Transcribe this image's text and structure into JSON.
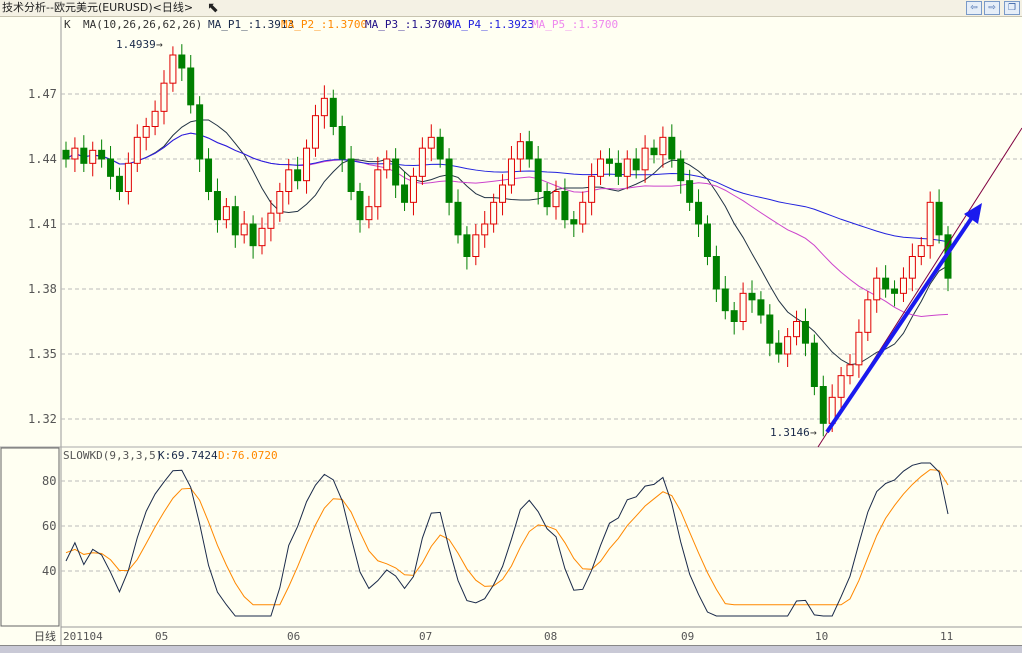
{
  "window": {
    "title": "技术分析--欧元美元(EURUSD)<日线>"
  },
  "legend": {
    "k": "K",
    "ma": "MA(10,26,26,62,26)",
    "p1": "MA_P1_:1.3913",
    "p2": "MA_P2_:1.3700",
    "p3": "MA_P3_:1.3700",
    "p4": "MA_P4_:1.3923",
    "p5": "MA_P5_:1.3700"
  },
  "annotations": {
    "high": "1.4939",
    "low": "1.3146"
  },
  "kd": {
    "label": "SLOWKD(9,3,3,5)",
    "k": "K:69.7424",
    "d": "D:76.0720"
  },
  "period_label": "日线",
  "colors": {
    "up": "#e00000",
    "down": "#008000",
    "ma10": "#223344",
    "ma26": "#cc44cc",
    "ma62": "#2222dd",
    "k": "#1a2a4a",
    "d": "#ff8800",
    "trend": "#1a1aee"
  },
  "chart_data": [
    {
      "type": "candlestick",
      "title": "EURUSD daily",
      "y_ticks": [
        1.32,
        1.35,
        1.38,
        1.41,
        1.44,
        1.47
      ],
      "ylim": [
        1.305,
        1.5
      ],
      "x_ticks": [
        "201104",
        "05",
        "06",
        "07",
        "08",
        "09",
        "10",
        "11"
      ],
      "closes": [
        1.44,
        1.445,
        1.438,
        1.444,
        1.44,
        1.432,
        1.425,
        1.438,
        1.45,
        1.455,
        1.462,
        1.475,
        1.488,
        1.482,
        1.465,
        1.44,
        1.425,
        1.412,
        1.418,
        1.405,
        1.41,
        1.4,
        1.408,
        1.415,
        1.425,
        1.435,
        1.43,
        1.445,
        1.46,
        1.468,
        1.455,
        1.44,
        1.425,
        1.412,
        1.418,
        1.435,
        1.44,
        1.428,
        1.42,
        1.432,
        1.445,
        1.45,
        1.44,
        1.42,
        1.405,
        1.395,
        1.405,
        1.41,
        1.42,
        1.428,
        1.44,
        1.448,
        1.44,
        1.425,
        1.418,
        1.425,
        1.412,
        1.41,
        1.42,
        1.432,
        1.44,
        1.438,
        1.432,
        1.44,
        1.435,
        1.445,
        1.442,
        1.45,
        1.44,
        1.43,
        1.42,
        1.41,
        1.395,
        1.38,
        1.37,
        1.365,
        1.378,
        1.375,
        1.368,
        1.355,
        1.35,
        1.358,
        1.365,
        1.355,
        1.335,
        1.318,
        1.33,
        1.34,
        1.345,
        1.36,
        1.375,
        1.385,
        1.38,
        1.378,
        1.385,
        1.395,
        1.4,
        1.42,
        1.405,
        1.385
      ],
      "ma_periods": [
        10,
        26,
        62
      ]
    },
    {
      "type": "line",
      "title": "SLOWKD(9,3,3,5)",
      "y_ticks": [
        40,
        60,
        80
      ],
      "ylim": [
        18,
        95
      ]
    }
  ]
}
